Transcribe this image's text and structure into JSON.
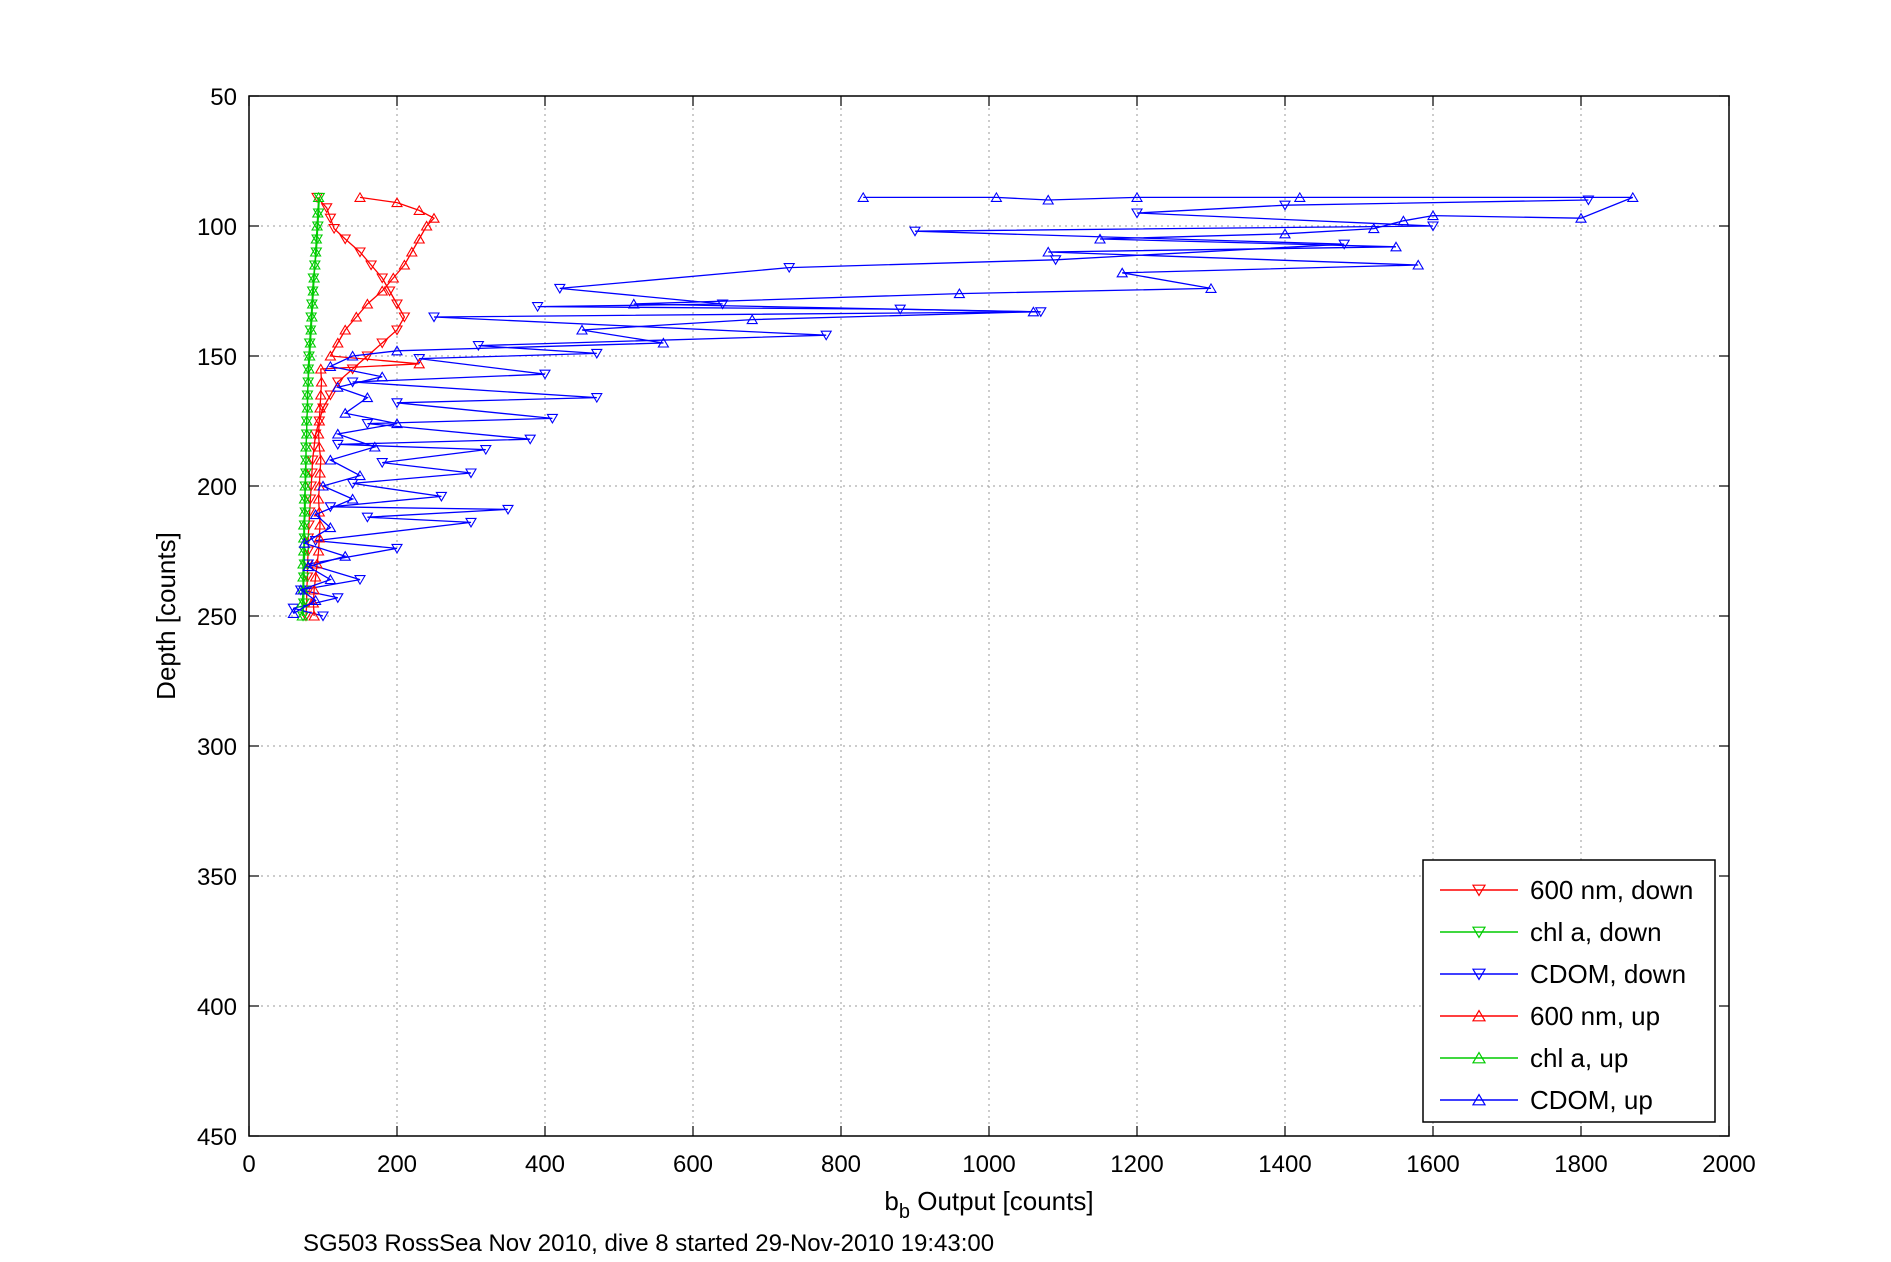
{
  "chart_data": {
    "type": "line",
    "xlabel": "b",
    "xlabel_sub": "b",
    "xlabel_rest": " Output [counts]",
    "ylabel": "Depth [counts]",
    "caption": "SG503 RossSea Nov 2010, dive 8 started 29-Nov-2010 19:43:00",
    "xlim": [
      0,
      2000
    ],
    "ylim": [
      50,
      450
    ],
    "y_reversed": true,
    "grid": true,
    "legend_position": "bottom-right",
    "x_ticks": [
      0,
      200,
      400,
      600,
      800,
      1000,
      1200,
      1400,
      1600,
      1800,
      2000
    ],
    "y_ticks": [
      50,
      100,
      150,
      200,
      250,
      300,
      350,
      400,
      450
    ],
    "series": [
      {
        "name": "600 nm, down",
        "color": "#ff0000",
        "marker": "triangle-down",
        "points": [
          [
            92,
            89
          ],
          [
            105,
            93
          ],
          [
            110,
            97
          ],
          [
            115,
            101
          ],
          [
            130,
            105
          ],
          [
            150,
            110
          ],
          [
            165,
            115
          ],
          [
            180,
            120
          ],
          [
            190,
            125
          ],
          [
            200,
            130
          ],
          [
            210,
            135
          ],
          [
            200,
            140
          ],
          [
            180,
            145
          ],
          [
            160,
            150
          ],
          [
            140,
            155
          ],
          [
            120,
            160
          ],
          [
            110,
            165
          ],
          [
            100,
            170
          ],
          [
            95,
            175
          ],
          [
            90,
            180
          ],
          [
            88,
            185
          ],
          [
            86,
            190
          ],
          [
            85,
            195
          ],
          [
            84,
            200
          ],
          [
            83,
            205
          ],
          [
            82,
            210
          ],
          [
            81,
            215
          ],
          [
            80,
            220
          ],
          [
            80,
            225
          ],
          [
            79,
            230
          ],
          [
            79,
            235
          ],
          [
            78,
            240
          ],
          [
            78,
            245
          ],
          [
            77,
            250
          ]
        ]
      },
      {
        "name": "chl a, down",
        "color": "#00cc00",
        "marker": "triangle-down",
        "points": [
          [
            95,
            89
          ],
          [
            94,
            95
          ],
          [
            93,
            100
          ],
          [
            92,
            105
          ],
          [
            91,
            110
          ],
          [
            89,
            115
          ],
          [
            87,
            120
          ],
          [
            86,
            125
          ],
          [
            85,
            130
          ],
          [
            84,
            135
          ],
          [
            83,
            140
          ],
          [
            82,
            145
          ],
          [
            81,
            150
          ],
          [
            80,
            155
          ],
          [
            80,
            160
          ],
          [
            79,
            165
          ],
          [
            79,
            170
          ],
          [
            78,
            175
          ],
          [
            78,
            180
          ],
          [
            77,
            185
          ],
          [
            77,
            190
          ],
          [
            77,
            195
          ],
          [
            76,
            200
          ],
          [
            76,
            205
          ],
          [
            76,
            210
          ],
          [
            75,
            215
          ],
          [
            75,
            220
          ],
          [
            75,
            225
          ],
          [
            75,
            230
          ],
          [
            74,
            235
          ],
          [
            74,
            240
          ],
          [
            74,
            245
          ],
          [
            73,
            250
          ]
        ]
      },
      {
        "name": "CDOM, down",
        "color": "#0000ff",
        "marker": "triangle-down",
        "points": [
          [
            1810,
            90
          ],
          [
            1400,
            92
          ],
          [
            1200,
            95
          ],
          [
            1600,
            100
          ],
          [
            900,
            102
          ],
          [
            1480,
            107
          ],
          [
            1090,
            113
          ],
          [
            730,
            116
          ],
          [
            420,
            124
          ],
          [
            640,
            130
          ],
          [
            390,
            131
          ],
          [
            880,
            132
          ],
          [
            1070,
            133
          ],
          [
            250,
            135
          ],
          [
            780,
            142
          ],
          [
            310,
            146
          ],
          [
            470,
            149
          ],
          [
            230,
            151
          ],
          [
            400,
            157
          ],
          [
            140,
            160
          ],
          [
            470,
            166
          ],
          [
            200,
            168
          ],
          [
            410,
            174
          ],
          [
            160,
            176
          ],
          [
            380,
            182
          ],
          [
            120,
            184
          ],
          [
            320,
            186
          ],
          [
            180,
            191
          ],
          [
            300,
            195
          ],
          [
            140,
            199
          ],
          [
            260,
            204
          ],
          [
            110,
            208
          ],
          [
            350,
            209
          ],
          [
            160,
            212
          ],
          [
            300,
            214
          ],
          [
            90,
            221
          ],
          [
            200,
            224
          ],
          [
            80,
            230
          ],
          [
            150,
            236
          ],
          [
            70,
            240
          ],
          [
            120,
            243
          ],
          [
            60,
            247
          ],
          [
            100,
            250
          ]
        ]
      },
      {
        "name": "600 nm, up",
        "color": "#ff0000",
        "marker": "triangle-up",
        "points": [
          [
            88,
            250
          ],
          [
            87,
            245
          ],
          [
            88,
            240
          ],
          [
            90,
            235
          ],
          [
            92,
            230
          ],
          [
            94,
            225
          ],
          [
            95,
            220
          ],
          [
            96,
            215
          ],
          [
            95,
            210
          ],
          [
            94,
            205
          ],
          [
            95,
            200
          ],
          [
            96,
            195
          ],
          [
            97,
            190
          ],
          [
            95,
            185
          ],
          [
            94,
            180
          ],
          [
            95,
            175
          ],
          [
            96,
            170
          ],
          [
            97,
            165
          ],
          [
            98,
            160
          ],
          [
            97,
            155
          ],
          [
            230,
            153
          ],
          [
            110,
            150
          ],
          [
            120,
            145
          ],
          [
            130,
            140
          ],
          [
            145,
            135
          ],
          [
            160,
            130
          ],
          [
            180,
            125
          ],
          [
            195,
            120
          ],
          [
            210,
            115
          ],
          [
            220,
            110
          ],
          [
            230,
            105
          ],
          [
            240,
            100
          ],
          [
            250,
            97
          ],
          [
            230,
            94
          ],
          [
            200,
            91
          ],
          [
            150,
            89
          ]
        ]
      },
      {
        "name": "chl a, up",
        "color": "#00cc00",
        "marker": "triangle-up",
        "points": [
          [
            72,
            250
          ],
          [
            72,
            245
          ],
          [
            73,
            240
          ],
          [
            73,
            235
          ],
          [
            73,
            230
          ],
          [
            74,
            225
          ],
          [
            74,
            220
          ],
          [
            74,
            215
          ],
          [
            75,
            210
          ],
          [
            75,
            205
          ],
          [
            76,
            200
          ],
          [
            76,
            195
          ],
          [
            77,
            190
          ],
          [
            77,
            185
          ],
          [
            78,
            180
          ],
          [
            78,
            175
          ],
          [
            79,
            170
          ],
          [
            79,
            165
          ],
          [
            80,
            160
          ],
          [
            81,
            155
          ],
          [
            82,
            150
          ],
          [
            83,
            145
          ],
          [
            84,
            140
          ],
          [
            85,
            135
          ],
          [
            86,
            130
          ],
          [
            87,
            125
          ],
          [
            88,
            120
          ],
          [
            89,
            115
          ],
          [
            90,
            110
          ],
          [
            91,
            105
          ],
          [
            92,
            100
          ],
          [
            93,
            95
          ],
          [
            94,
            89
          ]
        ]
      },
      {
        "name": "CDOM, up",
        "color": "#0000ff",
        "marker": "triangle-up",
        "points": [
          [
            60,
            249
          ],
          [
            90,
            244
          ],
          [
            70,
            240
          ],
          [
            110,
            236
          ],
          [
            80,
            231
          ],
          [
            130,
            227
          ],
          [
            75,
            222
          ],
          [
            110,
            216
          ],
          [
            90,
            211
          ],
          [
            140,
            205
          ],
          [
            100,
            200
          ],
          [
            150,
            196
          ],
          [
            110,
            190
          ],
          [
            170,
            185
          ],
          [
            120,
            180
          ],
          [
            200,
            176
          ],
          [
            130,
            172
          ],
          [
            160,
            166
          ],
          [
            120,
            162
          ],
          [
            180,
            158
          ],
          [
            110,
            154
          ],
          [
            140,
            150
          ],
          [
            200,
            148
          ],
          [
            560,
            145
          ],
          [
            450,
            140
          ],
          [
            680,
            136
          ],
          [
            1060,
            133
          ],
          [
            520,
            130
          ],
          [
            960,
            126
          ],
          [
            1300,
            124
          ],
          [
            1180,
            118
          ],
          [
            1580,
            115
          ],
          [
            1080,
            110
          ],
          [
            1550,
            108
          ],
          [
            1150,
            105
          ],
          [
            1400,
            103
          ],
          [
            1520,
            101
          ],
          [
            1560,
            98
          ],
          [
            1600,
            96
          ],
          [
            1800,
            97
          ],
          [
            1870,
            89
          ],
          [
            1420,
            89
          ],
          [
            1200,
            89
          ],
          [
            1080,
            90
          ],
          [
            1010,
            89
          ],
          [
            830,
            89
          ]
        ]
      }
    ]
  }
}
